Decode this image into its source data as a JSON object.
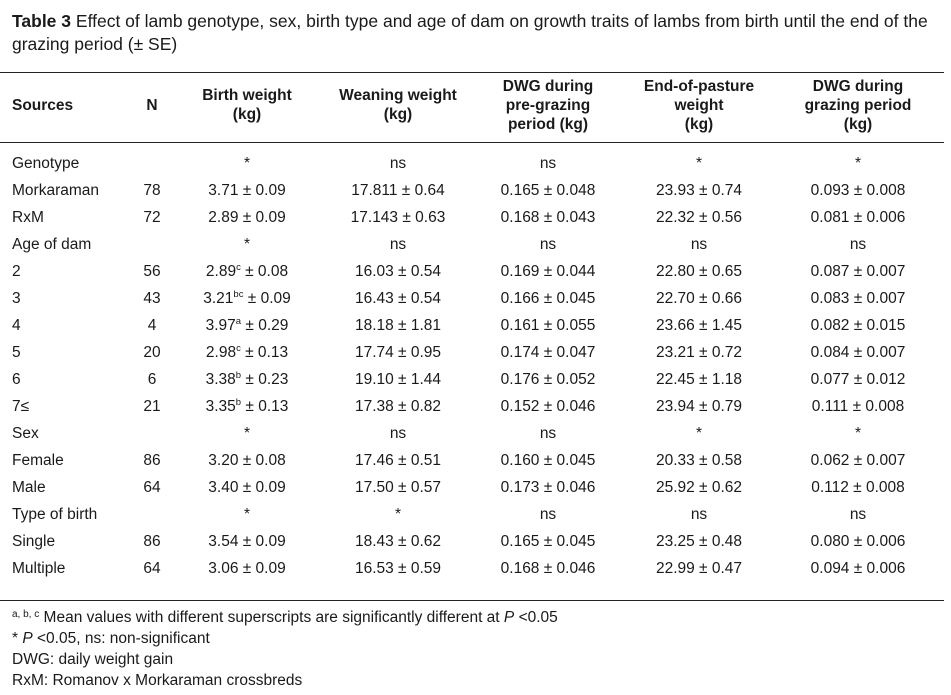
{
  "caption": {
    "label": "Table 3",
    "text": "Effect of lamb genotype, sex, birth type and age of dam on growth traits of lambs from birth until the end of the grazing period (± SE)"
  },
  "header": {
    "sources": "Sources",
    "n": "N",
    "birth_weight": [
      "Birth weight",
      "(kg)"
    ],
    "weaning_weight": [
      "Weaning weight",
      "(kg)"
    ],
    "dwg_pre": [
      "DWG during",
      "pre-grazing",
      "period (kg)"
    ],
    "end_pasture": [
      "End-of-pasture",
      "weight",
      "(kg)"
    ],
    "dwg_grazing": [
      "DWG during",
      "grazing period",
      "(kg)"
    ]
  },
  "rows": [
    {
      "src": "Genotype",
      "n": "",
      "bw": "*",
      "bw_sup": "",
      "bw_se": "",
      "ww": "ns",
      "d1": "ns",
      "ep": "*",
      "d2": "*"
    },
    {
      "src": "Morkaraman",
      "n": "78",
      "bw": "3.71 ± 0.09",
      "bw_sup": "",
      "bw_se": "",
      "ww": "17.811 ± 0.64",
      "d1": "0.165 ± 0.048",
      "ep": "23.93 ± 0.74",
      "d2": "0.093 ± 0.008"
    },
    {
      "src": "RxM",
      "n": "72",
      "bw": "2.89 ± 0.09",
      "bw_sup": "",
      "bw_se": "",
      "ww": "17.143 ± 0.63",
      "d1": "0.168 ± 0.043",
      "ep": "22.32 ± 0.56",
      "d2": "0.081 ± 0.006"
    },
    {
      "src": "Age of dam",
      "n": "",
      "bw": "*",
      "bw_sup": "",
      "bw_se": "",
      "ww": "ns",
      "d1": "ns",
      "ep": "ns",
      "d2": "ns"
    },
    {
      "src": "2",
      "n": "56",
      "bw": "2.89",
      "bw_sup": "c",
      "bw_se": " ± 0.08",
      "ww": "16.03 ± 0.54",
      "d1": "0.169 ± 0.044",
      "ep": "22.80 ± 0.65",
      "d2": "0.087 ± 0.007"
    },
    {
      "src": "3",
      "n": "43",
      "bw": "3.21",
      "bw_sup": "bc",
      "bw_se": " ± 0.09",
      "ww": "16.43 ± 0.54",
      "d1": "0.166 ± 0.045",
      "ep": "22.70 ± 0.66",
      "d2": "0.083 ± 0.007"
    },
    {
      "src": "4",
      "n": "4",
      "bw": "3.97",
      "bw_sup": "a",
      "bw_se": " ± 0.29",
      "ww": "18.18 ± 1.81",
      "d1": "0.161 ± 0.055",
      "ep": "23.66 ± 1.45",
      "d2": "0.082 ± 0.015"
    },
    {
      "src": "5",
      "n": "20",
      "bw": "2.98",
      "bw_sup": "c",
      "bw_se": " ± 0.13",
      "ww": "17.74 ± 0.95",
      "d1": "0.174 ± 0.047",
      "ep": "23.21 ± 0.72",
      "d2": "0.084 ± 0.007"
    },
    {
      "src": "6",
      "n": "6",
      "bw": "3.38",
      "bw_sup": "b",
      "bw_se": " ± 0.23",
      "ww": "19.10 ± 1.44",
      "d1": "0.176 ± 0.052",
      "ep": "22.45 ± 1.18",
      "d2": "0.077 ± 0.012"
    },
    {
      "src": "7≤",
      "n": "21",
      "bw": "3.35",
      "bw_sup": "b",
      "bw_se": " ± 0.13",
      "ww": "17.38 ± 0.82",
      "d1": "0.152 ± 0.046",
      "ep": "23.94 ± 0.79",
      "d2": "0.111 ± 0.008"
    },
    {
      "src": "Sex",
      "n": "",
      "bw": "*",
      "bw_sup": "",
      "bw_se": "",
      "ww": "ns",
      "d1": "ns",
      "ep": "*",
      "d2": "*"
    },
    {
      "src": "Female",
      "n": "86",
      "bw": "3.20 ± 0.08",
      "bw_sup": "",
      "bw_se": "",
      "ww": "17.46 ± 0.51",
      "d1": "0.160 ± 0.045",
      "ep": "20.33 ± 0.58",
      "d2": "0.062 ± 0.007"
    },
    {
      "src": "Male",
      "n": "64",
      "bw": "3.40 ± 0.09",
      "bw_sup": "",
      "bw_se": "",
      "ww": "17.50 ± 0.57",
      "d1": "0.173 ± 0.046",
      "ep": "25.92 ± 0.62",
      "d2": "0.112 ± 0.008"
    },
    {
      "src": "Type of birth",
      "n": "",
      "bw": "*",
      "bw_sup": "",
      "bw_se": "",
      "ww": "*",
      "d1": "ns",
      "ep": "ns",
      "d2": "ns"
    },
    {
      "src": "Single",
      "n": "86",
      "bw": "3.54 ± 0.09",
      "bw_sup": "",
      "bw_se": "",
      "ww": "18.43 ± 0.62",
      "d1": "0.165 ± 0.045",
      "ep": "23.25 ± 0.48",
      "d2": "0.080 ± 0.006"
    },
    {
      "src": "Multiple",
      "n": "64",
      "bw": "3.06 ± 0.09",
      "bw_sup": "",
      "bw_se": "",
      "ww": "16.53 ± 0.59",
      "d1": "0.168 ± 0.046",
      "ep": "22.99 ± 0.47",
      "d2": "0.094 ± 0.006"
    }
  ],
  "footnotes": {
    "sup_marks": "a, b, c",
    "line1": " Mean values with different superscripts are significantly different at ",
    "line1_p": "P",
    "line1_end": " <0.05",
    "line2_star": "* ",
    "line2_p": "P",
    "line2_end": " <0.05, ns: non-significant",
    "line3": "DWG: daily weight gain",
    "line4": "RxM: Romanov x Morkaraman crossbreds"
  }
}
